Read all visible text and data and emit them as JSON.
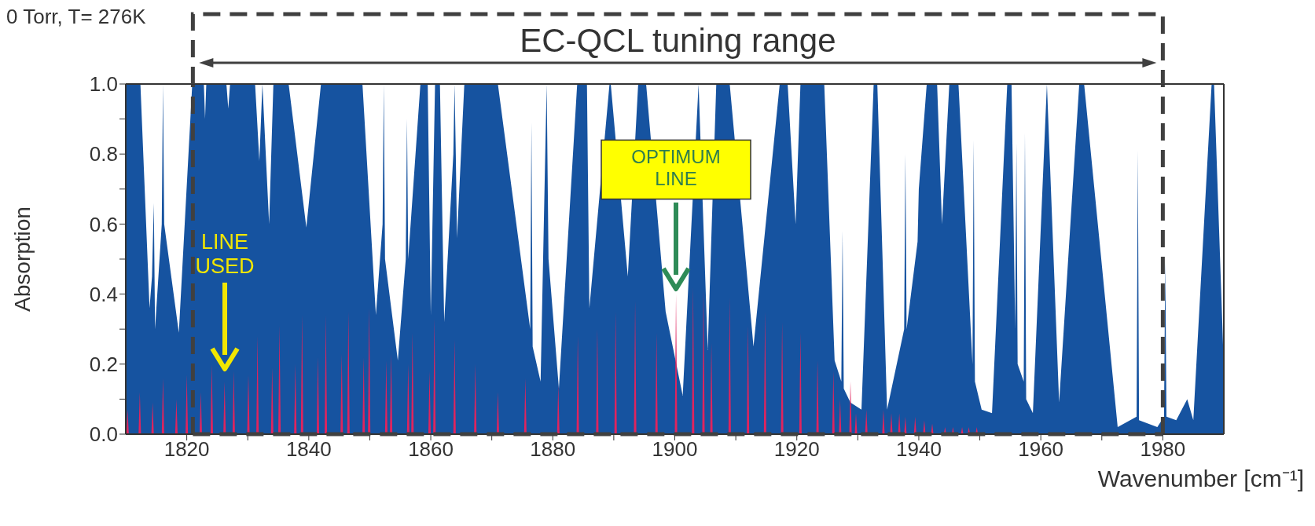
{
  "chart_data": {
    "type": "area",
    "xlabel": "Wavenumber [cm⁻¹]",
    "ylabel": "Absorption",
    "xlim": [
      1810,
      1990
    ],
    "ylim": [
      0,
      1
    ],
    "xticks": [
      1820,
      {
        "value": 1830,
        "label": null
      },
      1840,
      {
        "value": 1850,
        "label": null
      },
      1860,
      {
        "value": 1870,
        "label": null
      },
      1880,
      {
        "value": 1890,
        "label": null
      },
      1900,
      {
        "value": 1910,
        "label": null
      },
      1920,
      {
        "value": 1930,
        "label": null
      },
      1940,
      {
        "value": 1950,
        "label": null
      },
      1960,
      {
        "value": 1970,
        "label": null
      },
      1980
    ],
    "yticks": [
      {
        "value": 0,
        "label": "0.0"
      },
      {
        "value": 0.1,
        "label": null
      },
      {
        "value": 0.2,
        "label": "0.2"
      },
      {
        "value": 0.3,
        "label": null
      },
      {
        "value": 0.4,
        "label": "0.4"
      },
      {
        "value": 0.5,
        "label": null
      },
      {
        "value": 0.6,
        "label": "0.6"
      },
      {
        "value": 0.7,
        "label": null
      },
      {
        "value": 0.8,
        "label": "0.8"
      },
      {
        "value": 0.9,
        "label": null
      },
      {
        "value": 1,
        "label": "1.0"
      }
    ],
    "ref_lines": [
      {
        "axis": "x",
        "value": 1821,
        "color": "#404040",
        "line_style": "dashed"
      },
      {
        "axis": "x",
        "value": 1980,
        "color": "#404040",
        "line_style": "dashed"
      }
    ],
    "annotations": [
      "0 Torr, T= 276K",
      "EC-QCL tuning range",
      "LINE USED",
      "OPTIMUM LINE"
    ],
    "series": [
      {
        "color": "#1653a0",
        "x": [
          1810,
          1812.4,
          1813.9,
          1814.3,
          1814.6,
          1814.8,
          1815.9,
          1816.1,
          1816.3,
          1818.7,
          1820.9,
          1822.8,
          1823,
          1823.2,
          1826.5,
          1826.8,
          1827.1,
          1831.2,
          1831.9,
          1832.4,
          1833.5,
          1834.2,
          1836.7,
          1839.6,
          1842,
          1848.8,
          1851,
          1852.1,
          1852.3,
          1852.5,
          1854.6,
          1855.9,
          1856.1,
          1856.3,
          1858.3,
          1859.5,
          1860,
          1860.7,
          1861.5,
          1862.2,
          1863.7,
          1863.9,
          1864.1,
          1864.3,
          1865.5,
          1871,
          1876.3,
          1876.5,
          1876.7,
          1878,
          1879,
          1879.3,
          1881,
          1884,
          1885.6,
          1886,
          1889.3,
          1889.5,
          1892.3,
          1894,
          1895.3,
          1898.5,
          1901.3,
          1903.9,
          1905.4,
          1906.8,
          1909,
          1912.9,
          1917.2,
          1918.5,
          1919.8,
          1920.6,
          1924.5,
          1926.2,
          1927.3,
          1927.5,
          1927.7,
          1928.8,
          1930.6,
          1932.6,
          1933.2,
          1934.8,
          1937.6,
          1937.8,
          1938,
          1939.8,
          1940,
          1941.3,
          1943,
          1943.8,
          1945,
          1946.5,
          1948.8,
          1949,
          1949.2,
          1950.3,
          1952,
          1954.5,
          1955.2,
          1955.8,
          1956,
          1956.2,
          1957.2,
          1957.4,
          1957.6,
          1958.7,
          1961,
          1963,
          1966.3,
          1967.1,
          1972.6,
          1975.7,
          1975.9,
          1976.1,
          1979.1,
          1980.2,
          1980.4,
          1980.6,
          1982.2,
          1984,
          1985,
          1988,
          1988.4,
          1990
        ],
        "values": [
          1,
          1,
          0.36,
          0.45,
          0.66,
          0.3,
          0.6,
          1,
          0.6,
          0.29,
          1,
          1,
          0.9,
          1,
          1,
          0.93,
          1,
          1,
          0.78,
          1,
          0.6,
          1,
          1,
          0.59,
          1,
          1,
          0.34,
          0.6,
          1,
          0.5,
          0.21,
          0.5,
          0.9,
          0.5,
          1,
          1,
          0.34,
          1,
          1,
          0.32,
          0.8,
          1,
          0.8,
          0.56,
          1,
          1,
          0.3,
          0.89,
          0.25,
          0.15,
          1,
          0.5,
          0.13,
          1,
          1,
          0.36,
          1,
          1,
          0.45,
          1,
          1,
          0.35,
          0.11,
          1,
          0.24,
          1,
          1,
          0.25,
          1,
          1,
          0.6,
          1,
          1,
          0.21,
          0.15,
          0.58,
          0.13,
          0.09,
          0.07,
          1,
          1,
          0.07,
          0.3,
          0.8,
          0.3,
          0.55,
          0.7,
          1,
          1,
          0.6,
          1,
          1,
          0.2,
          0.84,
          0.15,
          0.07,
          0.06,
          1,
          1,
          0.3,
          0.83,
          0.2,
          0.15,
          0.86,
          0.1,
          0.06,
          1,
          0.09,
          1,
          1,
          0.02,
          0.05,
          0.81,
          0.04,
          0.02,
          0.05,
          0.5,
          0.05,
          0.04,
          0.1,
          0.04,
          1,
          1,
          0.19
        ]
      },
      {
        "color": "#e0245e",
        "x": [
          1810.1,
          1810.3,
          1810.5,
          1812.1,
          1812.3,
          1812.5,
          1814.2,
          1814.4,
          1814.6,
          1815.9,
          1816.1,
          1816.3,
          1818.1,
          1818.3,
          1818.5,
          1819.8,
          1820,
          1820.2,
          1822.1,
          1822.3,
          1822.5,
          1823.9,
          1824.1,
          1824.3,
          1826,
          1826.2,
          1826.4,
          1827.5,
          1827.7,
          1827.9,
          1829.9,
          1830.1,
          1830.3,
          1831.4,
          1831.6,
          1831.8,
          1833.8,
          1834,
          1834.2,
          1835,
          1835.2,
          1835.4,
          1837.6,
          1837.8,
          1838,
          1838.7,
          1838.9,
          1839.1,
          1841.3,
          1841.5,
          1841.7,
          1842.6,
          1842.8,
          1843,
          1845.2,
          1845.4,
          1845.6,
          1846.3,
          1846.5,
          1846.7,
          1848.8,
          1849,
          1849.2,
          1849.7,
          1849.9,
          1850.1,
          1852.5,
          1852.7,
          1852.9,
          1853.3,
          1853.5,
          1853.7,
          1856.1,
          1856.3,
          1856.5,
          1856.8,
          1857,
          1857.2,
          1859.6,
          1859.8,
          1860,
          1860.4,
          1860.6,
          1860.8,
          1863.7,
          1863.9,
          1864.1,
          1867.1,
          1867.3,
          1867.5,
          1870.8,
          1871,
          1871.2,
          1875.3,
          1875.5,
          1875.7,
          1880.7,
          1880.9,
          1881.1,
          1883.9,
          1884.1,
          1884.3,
          1887.1,
          1887.3,
          1887.5,
          1890.1,
          1890.3,
          1890.5,
          1893.3,
          1893.5,
          1893.7,
          1896.8,
          1897,
          1897.2,
          1900,
          1900.2,
          1900.4,
          1902.8,
          1903,
          1903.2,
          1904.5,
          1904.7,
          1904.9,
          1905.8,
          1906,
          1906.2,
          1908.8,
          1909,
          1909.2,
          1911.8,
          1912,
          1912.2,
          1914.6,
          1914.8,
          1915,
          1917.4,
          1917.6,
          1917.8,
          1920.4,
          1920.6,
          1920.8,
          1923.2,
          1923.4,
          1923.6,
          1925.8,
          1926,
          1926.2,
          1926.9,
          1927.1,
          1927.3,
          1928.6,
          1928.8,
          1929,
          1929.5,
          1929.7,
          1929.9,
          1931.2,
          1931.4,
          1931.6,
          1934,
          1934.2,
          1934.4,
          1935.3,
          1935.5,
          1935.7,
          1936.6,
          1936.8,
          1937,
          1937.6,
          1937.8,
          1938,
          1939.2,
          1939.4,
          1939.6,
          1940.7,
          1940.9,
          1941.1,
          1942,
          1942.2,
          1942.4,
          1944.1,
          1944.3,
          1944.5,
          1945.4,
          1945.6,
          1945.8,
          1946.9,
          1947.1,
          1947.3,
          1948,
          1948.2,
          1948.4,
          1949.3,
          1949.5,
          1949.7
        ],
        "values": [
          0,
          0.07,
          0,
          0,
          0.12,
          0,
          0,
          0.09,
          0,
          0,
          0.16,
          0,
          0,
          0.1,
          0,
          0,
          0.17,
          0,
          0,
          0.12,
          0,
          0,
          0.2,
          0,
          0,
          0.15,
          0,
          0,
          0.18,
          0,
          0,
          0.17,
          0,
          0,
          0.28,
          0,
          0,
          0.19,
          0,
          0,
          0.31,
          0,
          0,
          0.2,
          0,
          0,
          0.34,
          0,
          0,
          0.22,
          0,
          0,
          0.34,
          0,
          0,
          0.23,
          0,
          0,
          0.35,
          0,
          0,
          0.22,
          0,
          0,
          0.36,
          0,
          0,
          0.21,
          0,
          0,
          0.23,
          0,
          0,
          0.2,
          0,
          0,
          0.29,
          0,
          0,
          0.18,
          0,
          0,
          0.33,
          0,
          0,
          0.27,
          0,
          0,
          0.2,
          0,
          0,
          0.12,
          0,
          0,
          0.16,
          0,
          0,
          0.14,
          0,
          0,
          0.28,
          0,
          0,
          0.3,
          0,
          0,
          0.35,
          0,
          0,
          0.38,
          0,
          0,
          0.29,
          0,
          0,
          0.4,
          0,
          0,
          0.42,
          0,
          0,
          0.41,
          0,
          0,
          0.26,
          0,
          0,
          0.39,
          0,
          0,
          0.31,
          0,
          0,
          0.35,
          0,
          0,
          0.32,
          0,
          0,
          0.29,
          0,
          0,
          0.21,
          0,
          0,
          0.18,
          0,
          0,
          0.1,
          0,
          0,
          0.15,
          0,
          0,
          0.06,
          0,
          0,
          0.07,
          0,
          0,
          0.07,
          0,
          0,
          0.06,
          0,
          0,
          0.06,
          0,
          0,
          0.05,
          0,
          0,
          0.05,
          0,
          0,
          0.04,
          0,
          0,
          0.03,
          0,
          0,
          0.02,
          0,
          0,
          0.02,
          0,
          0,
          0.02,
          0,
          0,
          0.02,
          0,
          0,
          0.02,
          0
        ]
      }
    ]
  }
}
